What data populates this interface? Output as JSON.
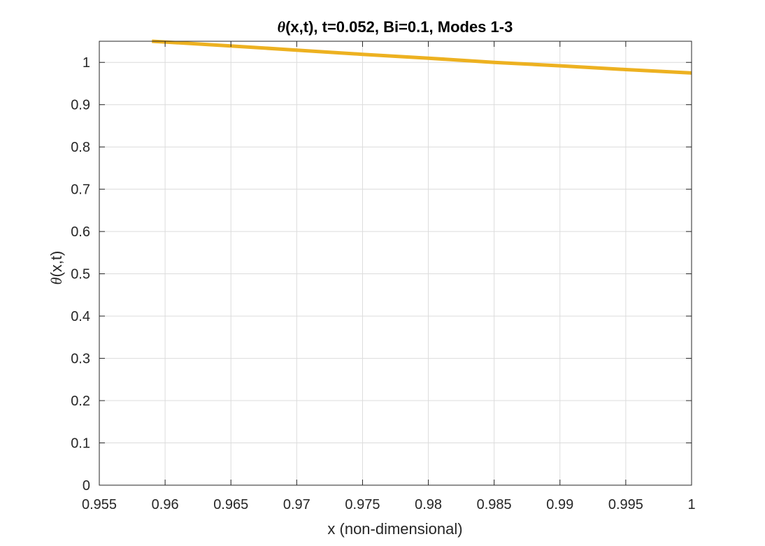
{
  "colors": {
    "line": "#EDB120",
    "grid": "#dcdcdc",
    "axis": "#262626",
    "background": "#ffffff"
  },
  "chart_data": {
    "type": "line",
    "title": {
      "symbol": "θ",
      "text": "(x,t), t=0.052, Bi=0.1, Modes 1-3"
    },
    "xlabel": "x (non-dimensional)",
    "ylabel": {
      "symbol": "θ",
      "text": "(x,t)"
    },
    "xlim": [
      0.955,
      1.0
    ],
    "ylim": [
      0,
      1.05
    ],
    "xticks": [
      0.955,
      0.96,
      0.965,
      0.97,
      0.975,
      0.98,
      0.985,
      0.99,
      0.995,
      1.0
    ],
    "xtick_labels": [
      "0.955",
      "0.96",
      "0.965",
      "0.97",
      "0.975",
      "0.98",
      "0.985",
      "0.99",
      "0.995",
      "1"
    ],
    "yticks": [
      0,
      0.1,
      0.2,
      0.3,
      0.4,
      0.5,
      0.6,
      0.7,
      0.8,
      0.9,
      1.0
    ],
    "ytick_labels": [
      "0",
      "0.1",
      "0.2",
      "0.3",
      "0.4",
      "0.5",
      "0.6",
      "0.7",
      "0.8",
      "0.9",
      "1"
    ],
    "grid": true,
    "series": [
      {
        "name": "theta",
        "x": [
          0.959,
          0.965,
          0.97,
          0.975,
          0.98,
          0.985,
          0.99,
          0.995,
          1.0
        ],
        "y": [
          1.05,
          1.039,
          1.029,
          1.019,
          1.01,
          1.0,
          0.992,
          0.983,
          0.975
        ]
      }
    ]
  }
}
